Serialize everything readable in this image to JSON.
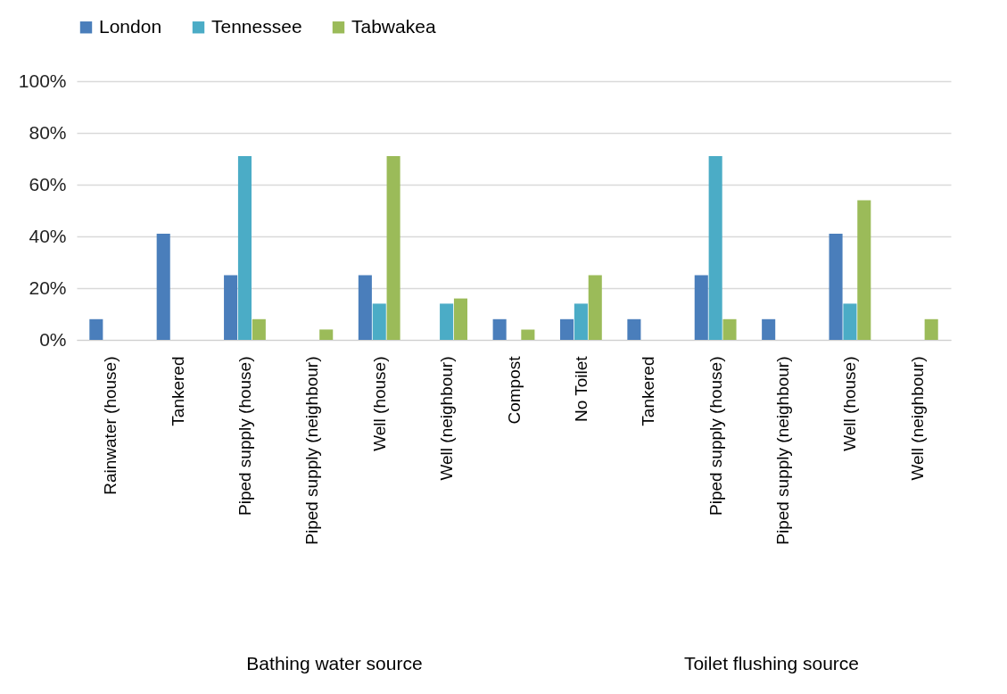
{
  "chart_data": {
    "type": "bar",
    "categories": [
      "Rainwater (house)",
      "Tankered",
      "Piped supply (house)",
      "Piped supply (neighbour)",
      "Well (house)",
      "Well (neighbour)",
      "Compost",
      "No Toilet",
      "Tankered",
      "Piped supply (house)",
      "Piped supply (neighbour)",
      "Well (house)",
      "Well (neighbour)"
    ],
    "series": [
      {
        "name": "London",
        "color": "#4a7ebb",
        "values": [
          8,
          41,
          25,
          null,
          25,
          null,
          8,
          8,
          8,
          25,
          8,
          41,
          null
        ]
      },
      {
        "name": "Tennessee",
        "color": "#4bacc6",
        "values": [
          null,
          null,
          71,
          null,
          14,
          14,
          null,
          14,
          null,
          71,
          null,
          14,
          null
        ]
      },
      {
        "name": "Tabwakea",
        "color": "#9bbb59",
        "values": [
          null,
          null,
          8,
          4,
          71,
          16,
          4,
          25,
          null,
          8,
          null,
          54,
          8
        ]
      }
    ],
    "ylim": [
      0,
      100
    ],
    "yticks": [
      {
        "value": 0,
        "label": "0%"
      },
      {
        "value": 20,
        "label": "20%"
      },
      {
        "value": 40,
        "label": "40%"
      },
      {
        "value": 60,
        "label": "60%"
      },
      {
        "value": 80,
        "label": "80%"
      },
      {
        "value": 100,
        "label": "100%"
      }
    ],
    "grid": "y",
    "legend": "top",
    "annotations": [
      "Bathing water source",
      "Toilet flushing source"
    ]
  }
}
